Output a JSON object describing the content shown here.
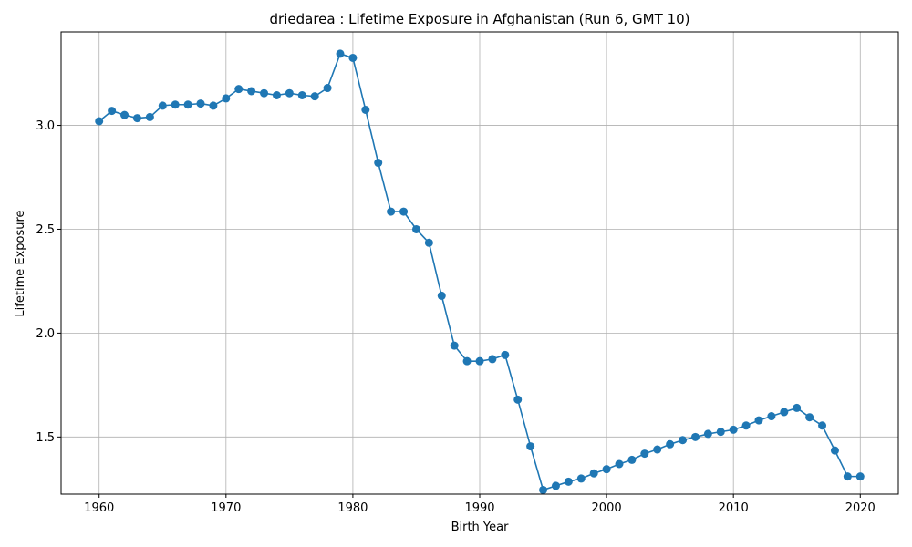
{
  "chart_data": {
    "type": "line",
    "title": "driedarea : Lifetime Exposure in Afghanistan (Run 6, GMT 10)",
    "xlabel": "Birth Year",
    "ylabel": "Lifetime Exposure",
    "xlim": [
      1957,
      2023
    ],
    "ylim": [
      1.225,
      3.45
    ],
    "xticks": [
      1960,
      1970,
      1980,
      1990,
      2000,
      2010,
      2020
    ],
    "yticks": [
      1.5,
      2.0,
      2.5,
      3.0
    ],
    "ytick_labels": [
      "1.5",
      "2.0",
      "2.5",
      "3.0"
    ],
    "grid": true,
    "marker": "circle",
    "color": "#1f77b4",
    "series": [
      {
        "x": [
          1960,
          1961,
          1962,
          1963,
          1964,
          1965,
          1966,
          1967,
          1968,
          1969,
          1970,
          1971,
          1972,
          1973,
          1974,
          1975,
          1976,
          1977,
          1978,
          1979,
          1980,
          1981,
          1982,
          1983,
          1984,
          1985,
          1986,
          1987,
          1988,
          1989,
          1990,
          1991,
          1992,
          1993,
          1994,
          1995,
          1996,
          1997,
          1998,
          1999,
          2000,
          2001,
          2002,
          2003,
          2004,
          2005,
          2006,
          2007,
          2008,
          2009,
          2010,
          2011,
          2012,
          2013,
          2014,
          2015,
          2016,
          2017,
          2018,
          2019,
          2020
        ],
        "values": [
          3.02,
          3.07,
          3.05,
          3.035,
          3.04,
          3.095,
          3.1,
          3.1,
          3.105,
          3.095,
          3.13,
          3.175,
          3.165,
          3.155,
          3.145,
          3.155,
          3.145,
          3.14,
          3.18,
          3.345,
          3.325,
          3.075,
          2.82,
          2.585,
          2.585,
          2.5,
          2.435,
          2.18,
          1.94,
          1.865,
          1.865,
          1.875,
          1.895,
          1.68,
          1.455,
          1.245,
          1.265,
          1.285,
          1.3,
          1.325,
          1.345,
          1.37,
          1.39,
          1.42,
          1.44,
          1.465,
          1.485,
          1.5,
          1.515,
          1.525,
          1.535,
          1.555,
          1.58,
          1.6,
          1.62,
          1.64,
          1.595,
          1.555,
          1.435,
          1.31,
          1.31
        ]
      }
    ]
  }
}
